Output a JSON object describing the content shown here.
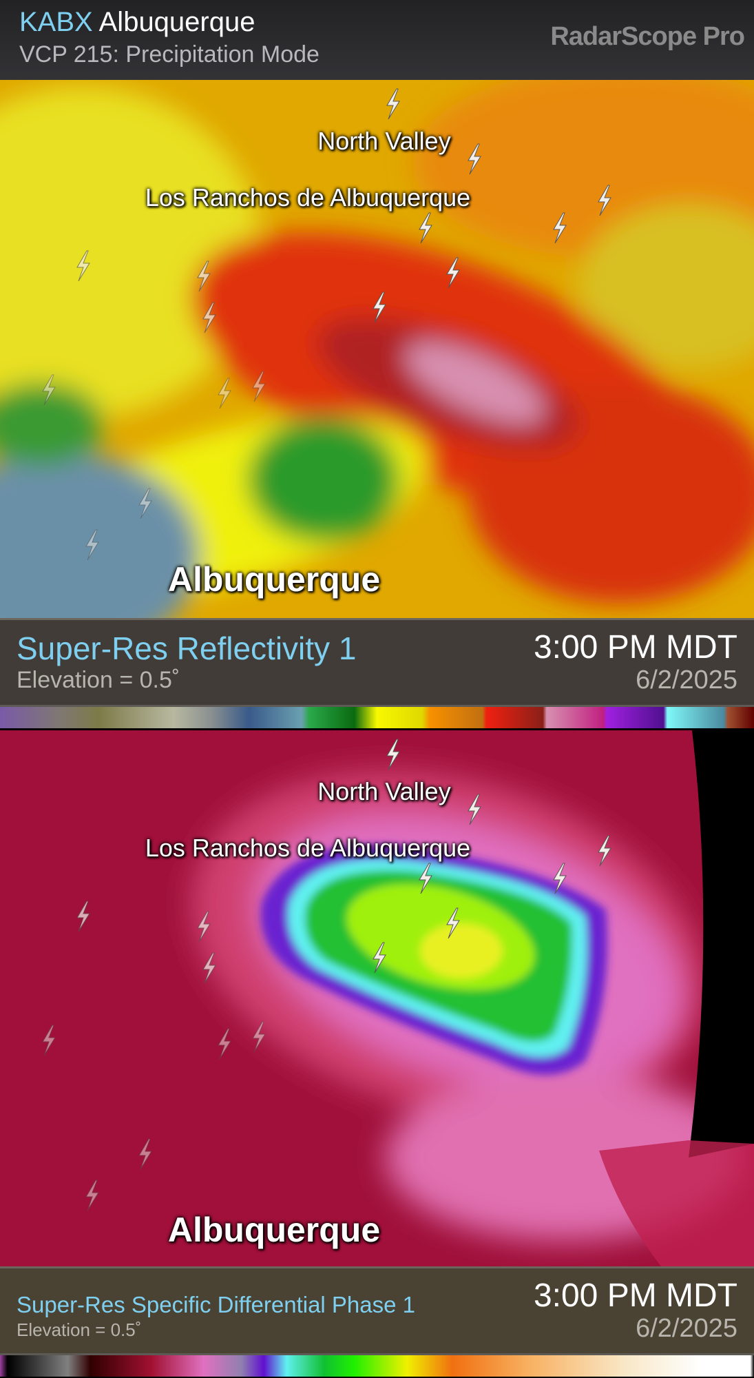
{
  "header": {
    "site_id": "KABX",
    "site_name": "Albuquerque",
    "vcp": "VCP 215: Precipitation Mode",
    "brand": "RadarScope Pro"
  },
  "panels": [
    {
      "product": "Super-Res Reflectivity 1",
      "elevation": "Elevation = 0.5˚",
      "time": "3:00 PM MDT",
      "date": "6/2/2025",
      "labels": {
        "north_valley": "North Valley",
        "los_ranchos": "Los Ranchos de Albuquerque",
        "albuquerque": "Albuquerque"
      }
    },
    {
      "product": "Super-Res Specific Differential Phase 1",
      "elevation": "Elevation = 0.5˚",
      "time": "3:00 PM MDT",
      "date": "6/2/2025",
      "labels": {
        "north_valley": "North Valley",
        "los_ranchos": "Los Ranchos de Albuquerque",
        "albuquerque": "Albuquerque"
      }
    }
  ],
  "colors": {
    "site_id": "#7fd0f0",
    "product": "#7fd0f0"
  },
  "icons": {
    "lightning": "lightning-bolt-icon"
  }
}
